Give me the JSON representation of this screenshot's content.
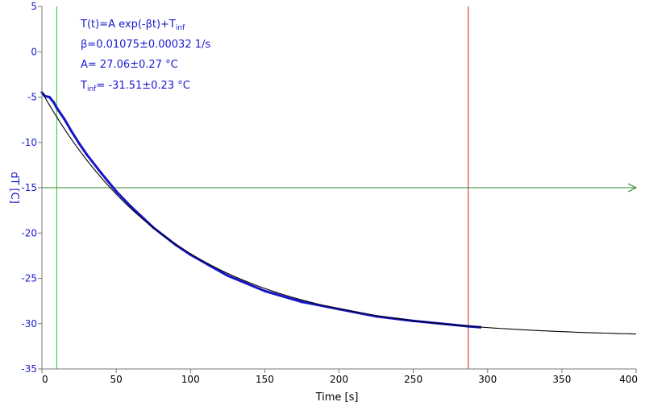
{
  "chart_data": {
    "type": "scatter",
    "xlabel": "Time [s]",
    "ylabel": "dT [C]",
    "xlim": [
      0,
      400
    ],
    "ylim": [
      -35,
      5
    ],
    "xticks": [
      0,
      50,
      100,
      150,
      200,
      250,
      300,
      350,
      400
    ],
    "yticks": [
      5,
      0,
      -5,
      -10,
      -15,
      -20,
      -25,
      -30,
      -35
    ],
    "grid": false,
    "annotations": {
      "model": "T(t)=A exp(-βt)+T",
      "model_sub": "inf",
      "beta": "β=0.01075±0.00032 1/s",
      "amplitude": "A= 27.06±0.27 °C",
      "tinf_prefix": "T",
      "tinf_sub": "inf",
      "tinf_value": "= -31.51±0.23 °C"
    },
    "fit": {
      "A": 27.06,
      "beta": 0.01075,
      "T_inf": -31.51,
      "x_range": [
        0,
        400
      ]
    },
    "measured": {
      "x": [
        0,
        2,
        5,
        8,
        10,
        15,
        20,
        25,
        30,
        40,
        50,
        60,
        75,
        90,
        100,
        125,
        150,
        175,
        200,
        225,
        250,
        275,
        287,
        295
      ],
      "y": [
        -4.5,
        -4.9,
        -5.0,
        -5.6,
        -6.2,
        -7.4,
        -8.8,
        -10.1,
        -11.3,
        -13.4,
        -15.4,
        -17.1,
        -19.4,
        -21.3,
        -22.4,
        -24.7,
        -26.4,
        -27.6,
        -28.4,
        -29.2,
        -29.7,
        -30.1,
        -30.3,
        -30.4
      ],
      "color": "#1414c8"
    },
    "cursors": [
      {
        "x": 10,
        "color": "#22cc22",
        "orientation": "vertical"
      },
      {
        "x": 287,
        "color": "#cc2222",
        "orientation": "vertical"
      },
      {
        "y": -15,
        "color": "#2a8a2a",
        "orientation": "horizontal",
        "arrow": true
      }
    ],
    "colors": {
      "fit": "#000000",
      "axis_y": "#1a1ad0",
      "axis_x": "#000000"
    }
  }
}
